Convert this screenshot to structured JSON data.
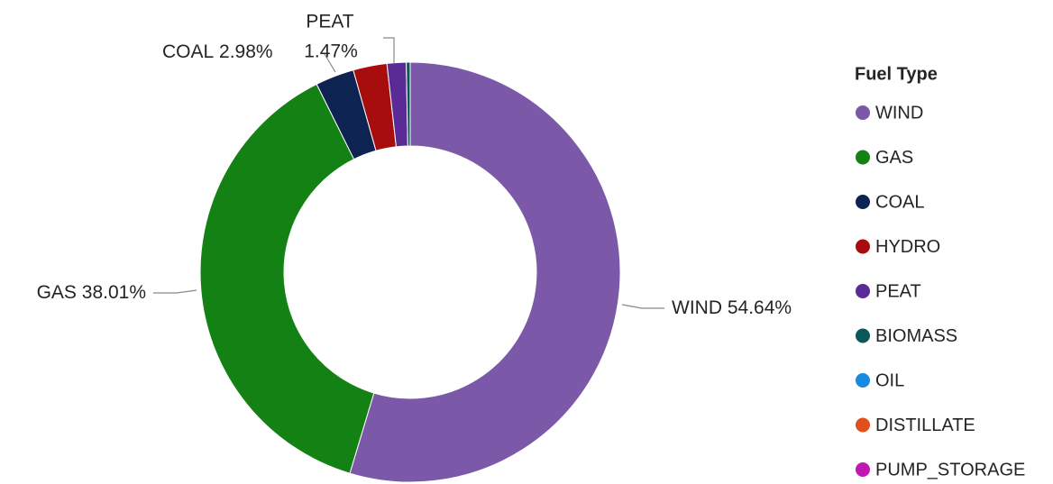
{
  "chart_data": {
    "type": "donut",
    "legend_title": "Fuel Type",
    "legend_position": "right",
    "categories": [
      "WIND",
      "GAS",
      "COAL",
      "HYDRO",
      "PEAT",
      "BIOMASS",
      "OIL",
      "DISTILLATE",
      "PUMP_STORAGE"
    ],
    "values": [
      54.64,
      38.01,
      2.98,
      2.6,
      1.47,
      0.3,
      0,
      0,
      0
    ],
    "value_labels": [
      "54.64%",
      "38.01%",
      "2.98%",
      null,
      "1.47%",
      null,
      null,
      null,
      null
    ],
    "colors": [
      "#7b59a8",
      "#138113",
      "#0d2352",
      "#a80d0d",
      "#5a2a96",
      "#0c5757",
      "#1a8ae0",
      "#e0501a",
      "#c216b1"
    ]
  }
}
